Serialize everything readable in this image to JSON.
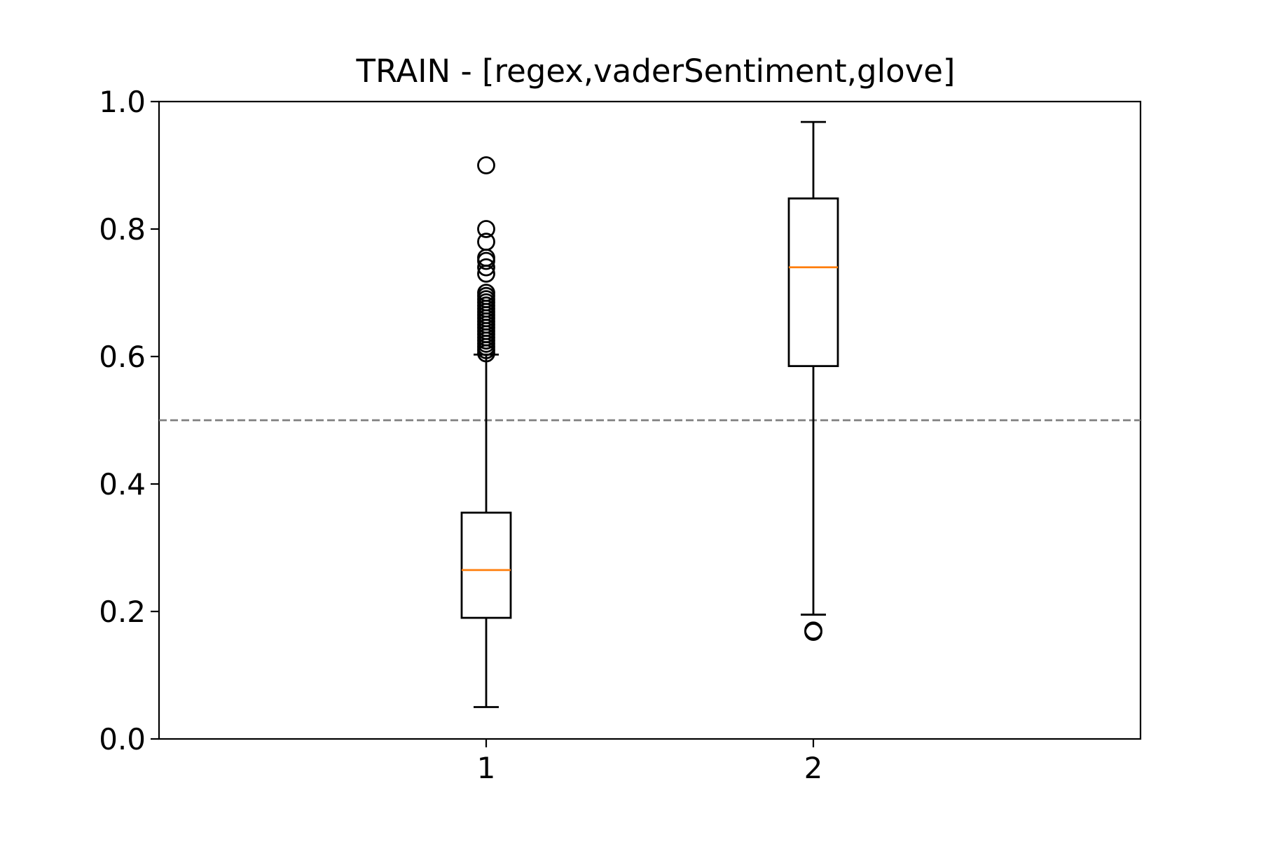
{
  "chart_data": {
    "type": "box",
    "title": "TRAIN - [regex,vaderSentiment,glove]",
    "xlabel": "",
    "ylabel": "",
    "ylim": [
      0.0,
      1.0
    ],
    "yticks": [
      "0.0",
      "0.2",
      "0.4",
      "0.6",
      "0.8",
      "1.0"
    ],
    "categories": [
      "1",
      "2"
    ],
    "boxes": [
      {
        "whisker_low": 0.05,
        "q1": 0.19,
        "median": 0.265,
        "q3": 0.355,
        "whisker_high": 0.603,
        "outliers": [
          0.605,
          0.61,
          0.615,
          0.62,
          0.625,
          0.63,
          0.635,
          0.64,
          0.645,
          0.65,
          0.655,
          0.66,
          0.665,
          0.67,
          0.675,
          0.68,
          0.685,
          0.69,
          0.695,
          0.7,
          0.73,
          0.74,
          0.75,
          0.755,
          0.78,
          0.8,
          0.9
        ]
      },
      {
        "whisker_low": 0.195,
        "q1": 0.585,
        "median": 0.74,
        "q3": 0.848,
        "whisker_high": 0.968,
        "outliers": [
          0.168,
          0.17
        ]
      }
    ],
    "reference_line": {
      "y": 0.5,
      "style": "dashed",
      "color": "#808080"
    },
    "colors": {
      "box": "#000000",
      "median": "#ff7f0e",
      "outlier": "#000000"
    },
    "grid": false,
    "legend": "none"
  }
}
